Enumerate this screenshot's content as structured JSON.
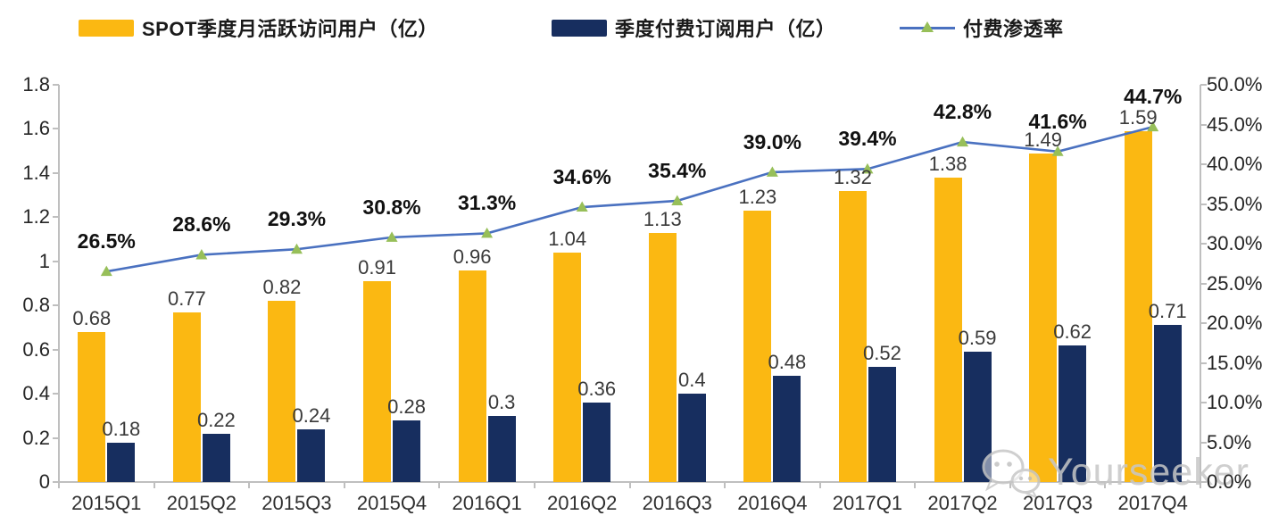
{
  "legend": {
    "items": [
      {
        "label": "SPOT季度月活跃访问用户（亿）",
        "type": "bar",
        "color": "#FBB812"
      },
      {
        "label": "季度付费订阅用户（亿）",
        "type": "bar",
        "color": "#172E5F"
      },
      {
        "label": "付费渗透率",
        "type": "line",
        "color": "#4A71C0",
        "marker_color": "#97BF59"
      }
    ]
  },
  "chart_data": {
    "type": "combo-bar-line",
    "categories": [
      "2015Q1",
      "2015Q2",
      "2015Q3",
      "2015Q4",
      "2016Q1",
      "2016Q2",
      "2016Q3",
      "2016Q4",
      "2017Q1",
      "2017Q2",
      "2017Q3",
      "2017Q4"
    ],
    "series": [
      {
        "name": "SPOT季度月活跃访问用户（亿）",
        "type": "bar",
        "axis": "left",
        "color": "#FBB812",
        "values": [
          0.68,
          0.77,
          0.82,
          0.91,
          0.96,
          1.04,
          1.13,
          1.23,
          1.32,
          1.38,
          1.49,
          1.59
        ],
        "labels": [
          "0.68",
          "0.77",
          "0.82",
          "0.91",
          "0.96",
          "1.04",
          "1.13",
          "1.23",
          "1.32",
          "1.38",
          "1.49",
          "1.59"
        ]
      },
      {
        "name": "季度付费订阅用户（亿）",
        "type": "bar",
        "axis": "left",
        "color": "#172E5F",
        "values": [
          0.18,
          0.22,
          0.24,
          0.28,
          0.3,
          0.36,
          0.4,
          0.48,
          0.52,
          0.59,
          0.62,
          0.71
        ],
        "labels": [
          "0.18",
          "0.22",
          "0.24",
          "0.28",
          "0.3",
          "0.36",
          "0.4",
          "0.48",
          "0.52",
          "0.59",
          "0.62",
          "0.71"
        ]
      },
      {
        "name": "付费渗透率",
        "type": "line",
        "axis": "right",
        "color": "#4A71C0",
        "marker": "triangle",
        "marker_color": "#97BF59",
        "values": [
          26.5,
          28.6,
          29.3,
          30.8,
          31.3,
          34.6,
          35.4,
          39.0,
          39.4,
          42.8,
          41.6,
          44.7
        ],
        "labels": [
          "26.5%",
          "28.6%",
          "29.3%",
          "30.8%",
          "31.3%",
          "34.6%",
          "35.4%",
          "39.0%",
          "39.4%",
          "42.8%",
          "41.6%",
          "44.7%"
        ]
      }
    ],
    "left_axis": {
      "min": 0,
      "max": 1.8,
      "ticks": [
        "0",
        "0.2",
        "0.4",
        "0.6",
        "0.8",
        "1",
        "1.2",
        "1.4",
        "1.6",
        "1.8"
      ]
    },
    "right_axis": {
      "min": 0,
      "max": 50,
      "ticks": [
        "0.0%",
        "5.0%",
        "10.0%",
        "15.0%",
        "20.0%",
        "25.0%",
        "30.0%",
        "35.0%",
        "40.0%",
        "45.0%",
        "50.0%"
      ]
    },
    "grid": false,
    "legend_position": "top"
  },
  "watermark": {
    "text": "Yourseeker",
    "icon": "wechat-icon",
    "color": "#c7c7c7"
  }
}
